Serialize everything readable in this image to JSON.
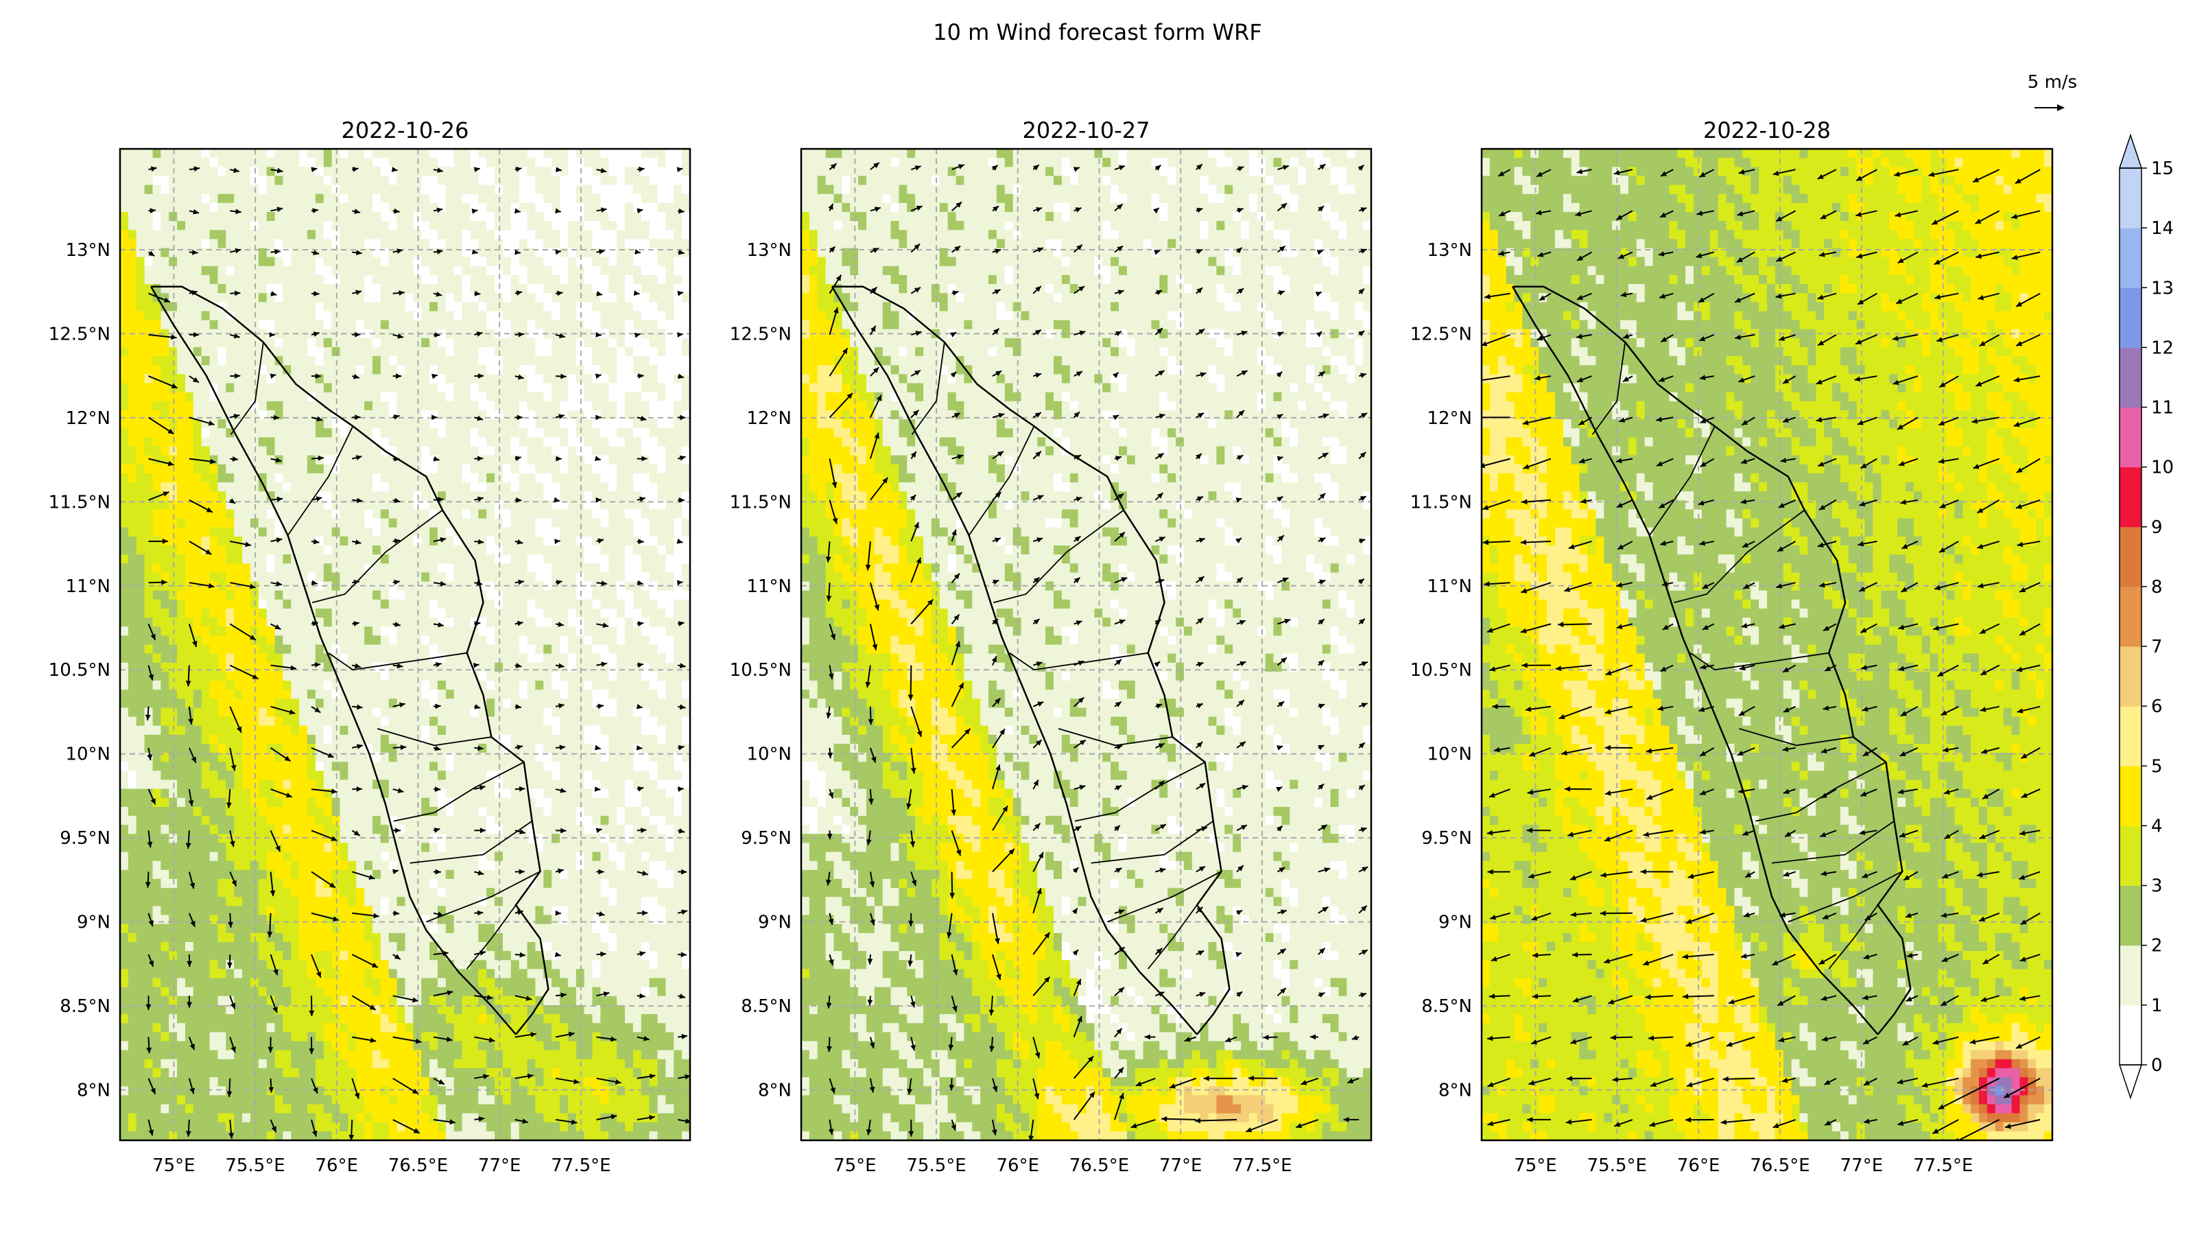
{
  "figure": {
    "title": "10 m Wind forecast form WRF",
    "quiver_key_label": "5 m/s"
  },
  "chart_data": [
    {
      "type": "heatmap",
      "title": "2022-10-26",
      "xlabel": "",
      "ylabel": "",
      "xlim": [
        74.67,
        78.17
      ],
      "ylim": [
        7.7,
        13.6
      ],
      "xticks": [
        "75°E",
        "75.5°E",
        "76°E",
        "76.5°E",
        "77°E",
        "77.5°E"
      ],
      "yticks": [
        "8°N",
        "8.5°N",
        "9°N",
        "9.5°N",
        "10°N",
        "10.5°N",
        "11°N",
        "11.5°N",
        "12°N",
        "12.5°N",
        "13°N"
      ],
      "grid": true,
      "field": "10 m wind speed (m/s) with wind vectors",
      "speed_summary": {
        "sea_band_max": 4.5,
        "land_typical": 1.5,
        "max": 5.5
      },
      "prevailing_wind": "westerly to north-westerly offshore, weak over land"
    },
    {
      "type": "heatmap",
      "title": "2022-10-27",
      "xlabel": "",
      "ylabel": "",
      "xlim": [
        74.67,
        78.17
      ],
      "ylim": [
        7.7,
        13.6
      ],
      "xticks": [
        "75°E",
        "75.5°E",
        "76°E",
        "76.5°E",
        "77°E",
        "77.5°E"
      ],
      "yticks": [
        "8°N",
        "8.5°N",
        "9°N",
        "9.5°N",
        "10°N",
        "10.5°N",
        "11°N",
        "11.5°N",
        "12°N",
        "12.5°N",
        "13°N"
      ],
      "grid": true,
      "field": "10 m wind speed (m/s) with wind vectors",
      "speed_summary": {
        "sea_band_max": 5.5,
        "land_typical": 1.5,
        "max": 7.5
      },
      "prevailing_wind": "north-westerly along coast, easterly near southern tip"
    },
    {
      "type": "heatmap",
      "title": "2022-10-28",
      "xlabel": "",
      "ylabel": "",
      "xlim": [
        74.67,
        78.17
      ],
      "ylim": [
        7.7,
        13.6
      ],
      "xticks": [
        "75°E",
        "75.5°E",
        "76°E",
        "76.5°E",
        "77°E",
        "77.5°E"
      ],
      "yticks": [
        "8°N",
        "8.5°N",
        "9°N",
        "9.5°N",
        "10°N",
        "10.5°N",
        "11°N",
        "11.5°N",
        "12°N",
        "12.5°N",
        "13°N"
      ],
      "grid": true,
      "field": "10 m wind speed (m/s) with wind vectors",
      "speed_summary": {
        "sea_band_max": 5.5,
        "land_typical": 2.5,
        "max": 10
      },
      "prevailing_wind": "easterly to north-easterly, strongest off the southern tip"
    }
  ],
  "colorbar": {
    "levels": [
      "0",
      "1",
      "2",
      "3",
      "4",
      "5",
      "6",
      "7",
      "8",
      "9",
      "10",
      "11",
      "12",
      "13",
      "14",
      "15"
    ],
    "colors": [
      "#ffffff",
      "#eef5d9",
      "#a6c964",
      "#d8ea1a",
      "#ffea00",
      "#fff08a",
      "#f5cf77",
      "#e5944a",
      "#db7a3a",
      "#f0153a",
      "#e860a8",
      "#9a78b8",
      "#7d98e8",
      "#9ab6f0",
      "#c2d4f5"
    ],
    "extend": "both"
  },
  "map_colors": {
    "coast": "#000000",
    "grid": "#aaaaaa",
    "arrow": "#000000"
  }
}
